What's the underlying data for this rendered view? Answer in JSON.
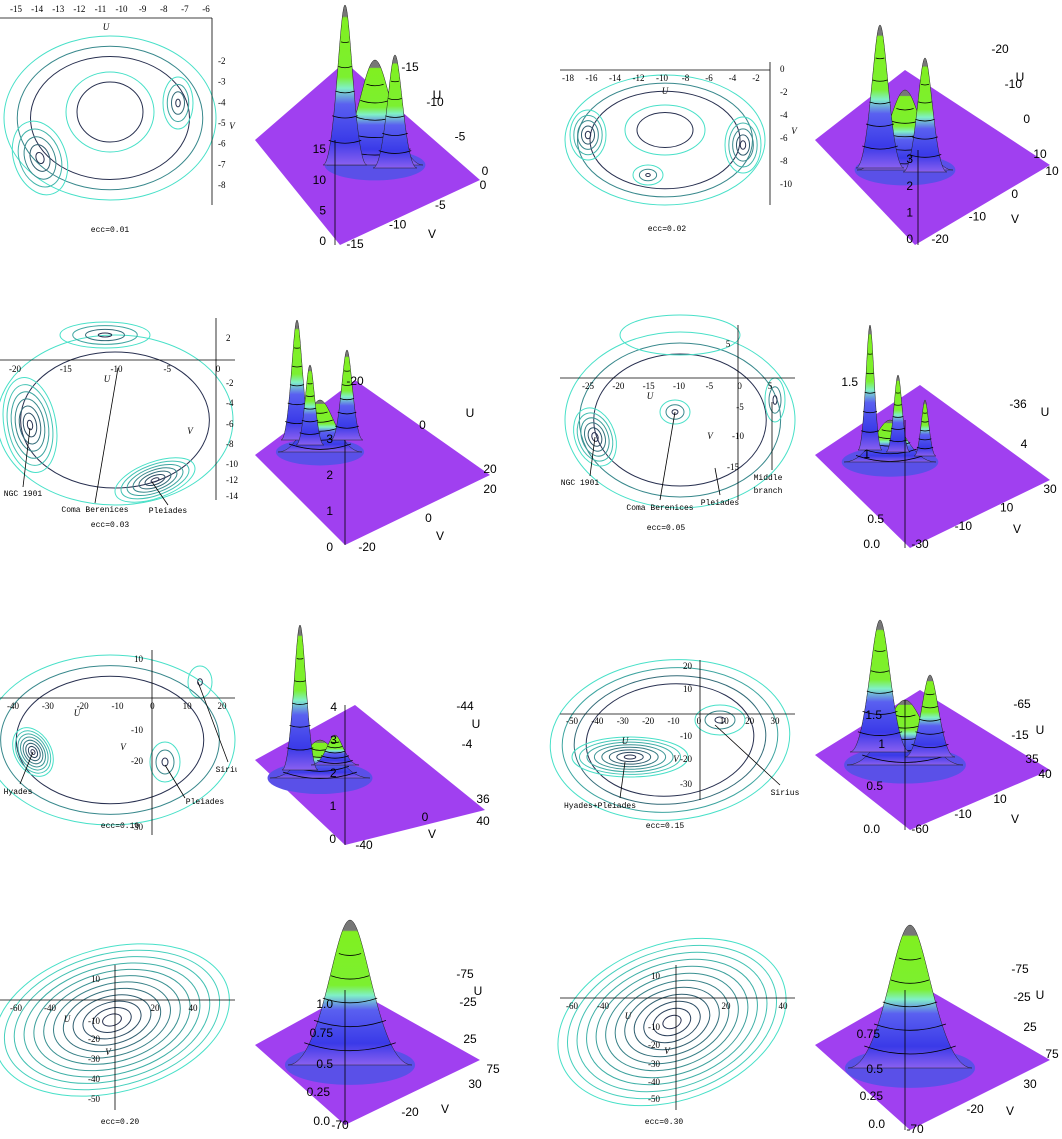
{
  "panels": [
    {
      "contour": {
        "u_label": "U",
        "u_ticks": [
          -15,
          -14,
          -13,
          -12,
          -11,
          -10,
          -9,
          -8,
          -7,
          -6
        ],
        "v_label": "V",
        "v_ticks": [
          -2,
          -3,
          -4,
          -5,
          -6,
          -7,
          -8
        ],
        "annotations": [],
        "caption": "ecc=0.01"
      },
      "surface": {
        "z_ticks": [
          0,
          5,
          10,
          15
        ],
        "u_label": "U",
        "u_ticks": [
          -15,
          -10,
          -5,
          0
        ],
        "v_label": "V",
        "v_ticks": [
          0,
          -5,
          -10,
          -15
        ]
      }
    },
    {
      "contour": {
        "u_label": "U",
        "u_ticks": [
          -18,
          -16,
          -14,
          -12,
          -10,
          -8,
          -6,
          -4,
          -2
        ],
        "v_label": "V",
        "v_ticks": [
          0,
          -2,
          -4,
          -6,
          -8,
          -10
        ],
        "annotations": [],
        "caption": "ecc=0.02"
      },
      "surface": {
        "z_ticks": [
          0,
          1,
          2,
          3
        ],
        "u_label": "U",
        "u_ticks": [
          -20,
          -10,
          0,
          10
        ],
        "v_label": "V",
        "v_ticks": [
          10,
          0,
          -10,
          -20
        ]
      }
    },
    {
      "contour": {
        "u_label": "U",
        "u_ticks": [
          -20,
          -15,
          -10,
          -5,
          0
        ],
        "v_label": "V",
        "v_ticks": [
          2,
          -2,
          -4,
          -6,
          -8,
          -10,
          -12,
          -14
        ],
        "annotations": [
          "NGC 1901",
          "Coma Berenices",
          "Pleiades"
        ],
        "caption": "ecc=0.03"
      },
      "surface": {
        "z_ticks": [
          0,
          1,
          2,
          3
        ],
        "u_label": "U",
        "u_ticks": [
          -20,
          0,
          20
        ],
        "v_label": "V",
        "v_ticks": [
          20,
          0,
          -20
        ]
      }
    },
    {
      "contour": {
        "u_label": "U",
        "u_ticks": [
          -25,
          -20,
          -15,
          -10,
          -5,
          0,
          5
        ],
        "v_label": "V",
        "v_ticks": [
          5,
          -5,
          -10,
          -15
        ],
        "annotations": [
          "NGC 1901",
          "Coma Berenices",
          "Pleiades",
          "Middle",
          "branch"
        ],
        "caption": "ecc=0.05"
      },
      "surface": {
        "z_ticks": [
          "0.0",
          0.5,
          1,
          1.5
        ],
        "u_label": "U",
        "u_ticks": [
          -36,
          4
        ],
        "v_label": "V",
        "v_ticks": [
          30,
          10,
          -10,
          -30
        ]
      }
    },
    {
      "contour": {
        "u_label": "U",
        "u_ticks": [
          -40,
          -30,
          -20,
          -10,
          0,
          10,
          20
        ],
        "v_label": "V",
        "v_ticks": [
          10,
          -10,
          -20,
          -30
        ],
        "annotations": [
          "Hyades",
          "Pleiades",
          "Sirius"
        ],
        "caption": "ecc=0.10"
      },
      "surface": {
        "z_ticks": [
          0,
          1,
          2,
          3,
          4
        ],
        "u_label": "U",
        "u_ticks": [
          -44,
          -4,
          36
        ],
        "v_label": "V",
        "v_ticks": [
          40,
          0,
          -40
        ]
      }
    },
    {
      "contour": {
        "u_label": "U",
        "u_ticks": [
          -50,
          -40,
          -30,
          -20,
          -10,
          0,
          10,
          20,
          30
        ],
        "v_label": "V",
        "v_ticks": [
          20,
          10,
          -10,
          -20,
          -30
        ],
        "annotations": [
          "Hyades+Pleiades",
          "Sirius"
        ],
        "caption": "ecc=0.15"
      },
      "surface": {
        "z_ticks": [
          "0.0",
          0.5,
          1,
          1.5
        ],
        "u_label": "U",
        "u_ticks": [
          -65,
          -15,
          35
        ],
        "v_label": "V",
        "v_ticks": [
          40,
          10,
          -10,
          -60
        ]
      }
    },
    {
      "contour": {
        "u_label": "U",
        "u_ticks": [
          -60,
          -40,
          20,
          40
        ],
        "v_label": "V",
        "v_ticks": [
          10,
          -10,
          -20,
          -30,
          -40,
          -50
        ],
        "annotations": [],
        "caption": "ecc=0.20"
      },
      "surface": {
        "z_ticks": [
          "0.0",
          0.25,
          0.5,
          0.75,
          "1.0"
        ],
        "u_label": "U",
        "u_ticks": [
          -75,
          -25,
          25,
          75
        ],
        "v_label": "V",
        "v_ticks": [
          30,
          -20,
          -70
        ]
      }
    },
    {
      "contour": {
        "u_label": "U",
        "u_ticks": [
          -60,
          -40,
          20,
          40
        ],
        "v_label": "V",
        "v_ticks": [
          10,
          -10,
          -20,
          -30,
          -40,
          -50
        ],
        "annotations": [],
        "caption": "ecc=0.30"
      },
      "surface": {
        "z_ticks": [
          "0.0",
          0.25,
          0.5,
          0.75
        ],
        "u_label": "U",
        "u_ticks": [
          -75,
          -25,
          25,
          75
        ],
        "v_label": "V",
        "v_ticks": [
          30,
          -20,
          -70
        ]
      }
    }
  ]
}
